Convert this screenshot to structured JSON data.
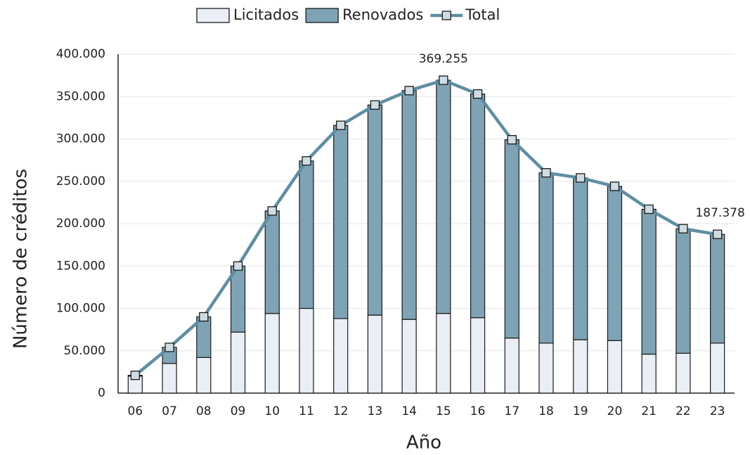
{
  "chart_data": {
    "type": "stacked-bar-line",
    "x_label": "Año",
    "y_label": "Número de créditos",
    "categories": [
      "06",
      "07",
      "08",
      "09",
      "10",
      "11",
      "12",
      "13",
      "14",
      "15",
      "16",
      "17",
      "18",
      "19",
      "20",
      "21",
      "22",
      "23"
    ],
    "series": [
      {
        "name": "Licitados",
        "type": "bar",
        "color": "#e9eff5",
        "values": [
          20000,
          35000,
          42000,
          72000,
          94000,
          100000,
          88000,
          92000,
          87000,
          94000,
          89000,
          65000,
          59000,
          63000,
          62000,
          46000,
          47000,
          59000
        ]
      },
      {
        "name": "Renovados",
        "type": "bar",
        "color": "#7ea3b4",
        "values": [
          1000,
          19000,
          48000,
          78000,
          121000,
          174000,
          228000,
          248000,
          270000,
          275255,
          264000,
          234000,
          201000,
          191000,
          182000,
          171000,
          147000,
          128378
        ]
      },
      {
        "name": "Total",
        "type": "line",
        "color": "#5e8ea3",
        "values": [
          21000,
          54000,
          90000,
          150000,
          215000,
          274000,
          316000,
          340000,
          357000,
          369255,
          353000,
          299000,
          260000,
          254000,
          244000,
          217000,
          194000,
          187378
        ],
        "value_labels": [
          null,
          null,
          null,
          null,
          null,
          null,
          null,
          null,
          null,
          "369.255",
          null,
          null,
          null,
          null,
          null,
          null,
          null,
          "187.378"
        ]
      }
    ],
    "ylim": [
      0,
      400000
    ],
    "yticks": [
      0,
      {
        "value": 50000,
        "label": "50.000"
      },
      {
        "value": 100000,
        "label": "100.000"
      },
      {
        "value": 150000,
        "label": "150.000"
      },
      {
        "value": 200000,
        "label": "200.000"
      },
      {
        "value": 250000,
        "label": "250.000"
      },
      {
        "value": 300000,
        "label": "300.000"
      },
      {
        "value": 350000,
        "label": "350.000"
      },
      {
        "value": 400000,
        "label": "400.000"
      }
    ],
    "grid": true,
    "legend": "top"
  }
}
